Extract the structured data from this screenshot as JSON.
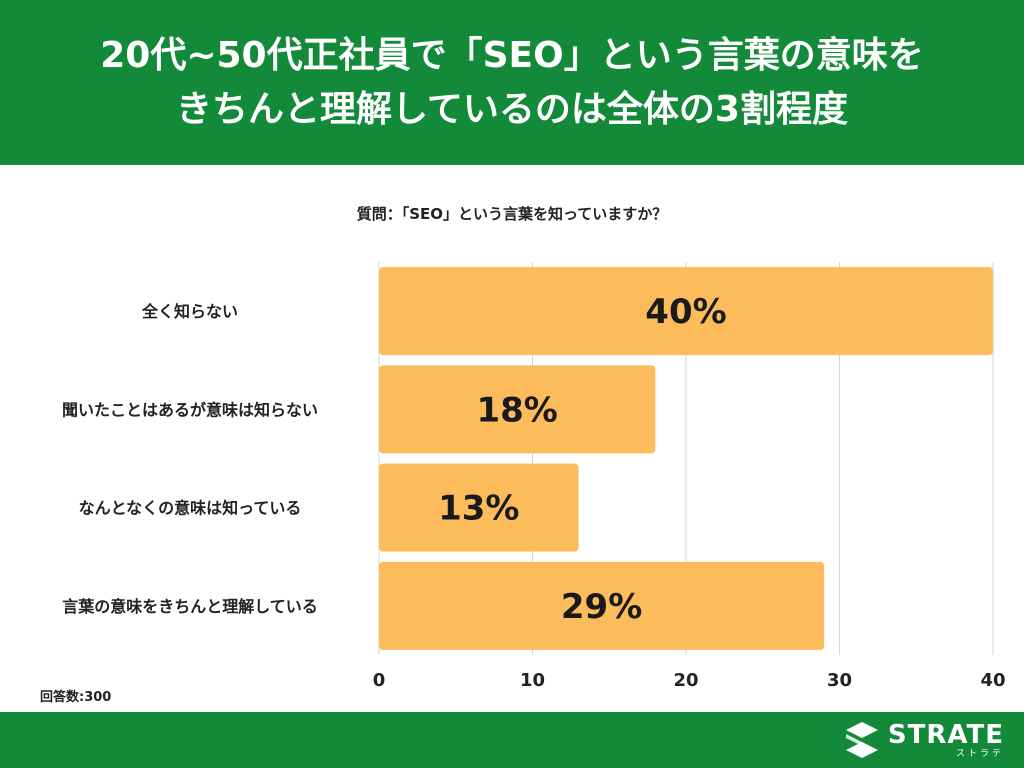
{
  "header": {
    "title_line1": "20代~50代正社員で「SEO」という言葉の意味を",
    "title_line2": "きちんと理解しているのは全体の3割程度"
  },
  "question": "質問：「SEO」という言葉を知っていますか？",
  "respondents": "回答数:300",
  "colors": {
    "bar": "#fcbc5b",
    "header": "#138a3a",
    "grid": "#d6d6d6"
  },
  "chart_data": {
    "type": "bar",
    "orientation": "horizontal",
    "categories": [
      "全く知らない",
      "聞いたことはあるが意味は知らない",
      "なんとなくの意味は知っている",
      "言葉の意味をきちんと理解している"
    ],
    "values": [
      40,
      18,
      13,
      29
    ],
    "value_labels": [
      "40%",
      "18%",
      "13%",
      "29%"
    ],
    "xlim": [
      0,
      40
    ],
    "xticks": [
      0,
      10,
      20,
      30,
      40
    ],
    "grid": true
  },
  "footer": {
    "logo_icon": "strate-s-icon",
    "logo_main": "STRATE",
    "logo_sub": "ストラテ"
  }
}
